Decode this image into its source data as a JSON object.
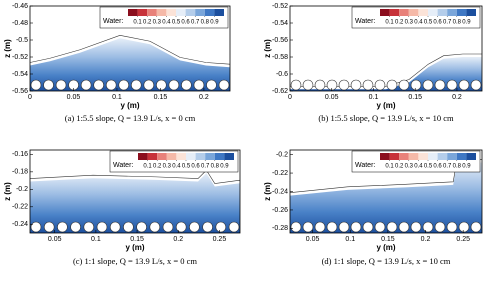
{
  "chart_data": [
    {
      "type": "contour",
      "caption": "(a)  1:5.5 slope, Q = 13.9 L/s, x = 0 cm",
      "xlabel": "y (m)",
      "ylabel": "z (m)",
      "xlim": [
        0,
        0.23
      ],
      "xticks": [
        0,
        0.05,
        0.1,
        0.15,
        0.2
      ],
      "ylim": [
        -0.56,
        -0.46
      ],
      "yticks": [
        -0.56,
        -0.54,
        -0.52,
        -0.5,
        -0.48,
        -0.46
      ],
      "colorbar": {
        "label": "Water:",
        "ticks": [
          0.1,
          0.2,
          0.3,
          0.4,
          0.5,
          0.6,
          0.7,
          0.8,
          0.9
        ],
        "colors": [
          "#8b0e1e",
          "#c7323a",
          "#e8817a",
          "#f5b9a8",
          "#fbe3d8",
          "#e6eef8",
          "#b4cdea",
          "#7aa6da",
          "#3f78c4",
          "#1c4f9e"
        ]
      }
    },
    {
      "type": "contour",
      "caption": "(b)  1:5.5 slope, Q = 13.9 L/s, x = 10 cm",
      "xlabel": "y (m)",
      "ylabel": "z (m)",
      "xlim": [
        0,
        0.23
      ],
      "xticks": [
        0,
        0.05,
        0.1,
        0.15,
        0.2
      ],
      "ylim": [
        -0.62,
        -0.52
      ],
      "yticks": [
        -0.62,
        -0.6,
        -0.58,
        -0.56,
        -0.54,
        -0.52
      ],
      "colorbar": {
        "label": "Water:",
        "ticks": [
          0.1,
          0.2,
          0.3,
          0.4,
          0.5,
          0.6,
          0.7,
          0.8,
          0.9
        ],
        "colors": [
          "#8b0e1e",
          "#c7323a",
          "#e8817a",
          "#f5b9a8",
          "#fbe3d8",
          "#e6eef8",
          "#b4cdea",
          "#7aa6da",
          "#3f78c4",
          "#1c4f9e"
        ]
      }
    },
    {
      "type": "contour",
      "caption": "(c)  1:1 slope, Q = 13.9 L/s, x = 0 cm",
      "xlabel": "y (m)",
      "ylabel": "z (m)",
      "xlim": [
        0.02,
        0.275
      ],
      "xticks": [
        0.05,
        0.1,
        0.15,
        0.2,
        0.25
      ],
      "ylim": [
        -0.25,
        -0.155
      ],
      "yticks": [
        -0.24,
        -0.22,
        -0.2,
        -0.18,
        -0.16
      ],
      "colorbar": {
        "label": "Water:",
        "ticks": [
          0.1,
          0.2,
          0.3,
          0.4,
          0.5,
          0.6,
          0.7,
          0.8,
          0.9
        ],
        "colors": [
          "#8b0e1e",
          "#c7323a",
          "#e8817a",
          "#f5b9a8",
          "#fbe3d8",
          "#e6eef8",
          "#b4cdea",
          "#7aa6da",
          "#3f78c4",
          "#1c4f9e"
        ]
      }
    },
    {
      "type": "contour",
      "caption": "(d)  1:1 slope, Q = 13.9 L/s, x = 10 cm",
      "xlabel": "y (m)",
      "ylabel": "z (m)",
      "xlim": [
        0.02,
        0.275
      ],
      "xticks": [
        0.05,
        0.1,
        0.15,
        0.2,
        0.25
      ],
      "ylim": [
        -0.285,
        -0.195
      ],
      "yticks": [
        -0.28,
        -0.26,
        -0.24,
        -0.22,
        -0.2
      ],
      "colorbar": {
        "label": "Water:",
        "ticks": [
          0.1,
          0.2,
          0.3,
          0.4,
          0.5,
          0.6,
          0.7,
          0.8,
          0.9
        ],
        "colors": [
          "#8b0e1e",
          "#c7323a",
          "#e8817a",
          "#f5b9a8",
          "#fbe3d8",
          "#e6eef8",
          "#b4cdea",
          "#7aa6da",
          "#3f78c4",
          "#1c4f9e"
        ]
      }
    }
  ]
}
